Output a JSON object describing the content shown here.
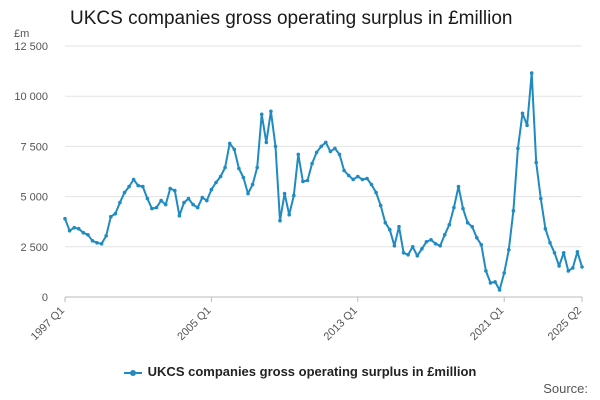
{
  "title": "UKCS companies gross operating surplus in £million",
  "chart_data": {
    "type": "line",
    "title": "UKCS companies gross operating surplus in £million",
    "ylabel": "£m",
    "xlabel": "",
    "ylim": [
      0,
      12500
    ],
    "yticks": [
      0,
      2500,
      5000,
      7500,
      10000,
      12500
    ],
    "ytick_labels": [
      "0",
      "2 500",
      "5 000",
      "7 500",
      "10 000",
      "12 500"
    ],
    "xtick_labels": [
      "1997 Q1",
      "2005 Q1",
      "2013 Q1",
      "2021 Q1",
      "2025 Q2"
    ],
    "grid": true,
    "legend_position": "bottom",
    "series": [
      {
        "name": "UKCS companies gross operating surplus in £million",
        "color": "#1f8bc2",
        "start": "1997 Q1",
        "frequency": "quarterly",
        "values": [
          3900,
          3300,
          3450,
          3400,
          3200,
          3100,
          2800,
          2700,
          2650,
          3050,
          4000,
          4150,
          4700,
          5200,
          5500,
          5850,
          5550,
          5500,
          4900,
          4400,
          4450,
          4800,
          4600,
          5400,
          5300,
          4050,
          4700,
          4900,
          4600,
          4450,
          4950,
          4800,
          5350,
          5700,
          6000,
          6450,
          7650,
          7350,
          6400,
          5950,
          5150,
          5600,
          6450,
          9100,
          7700,
          9250,
          7500,
          3800,
          5150,
          4100,
          5050,
          7100,
          5750,
          5800,
          6650,
          7200,
          7500,
          7700,
          7250,
          7400,
          7100,
          6300,
          6050,
          5850,
          6000,
          5850,
          5900,
          5600,
          5200,
          4550,
          3700,
          3350,
          2550,
          3500,
          2200,
          2100,
          2500,
          2050,
          2400,
          2750,
          2850,
          2650,
          2550,
          3100,
          3600,
          4450,
          5500,
          4400,
          3700,
          3500,
          2950,
          2600,
          1300,
          700,
          750,
          350,
          1200,
          2350,
          4300,
          7400,
          9150,
          8550,
          11150,
          6700,
          4900,
          3400,
          2700,
          2200,
          1550,
          2200,
          1300,
          1450,
          2250,
          1500
        ]
      }
    ]
  },
  "legend": {
    "label": "UKCS companies gross operating surplus in £million"
  },
  "source": {
    "label": "Source:"
  }
}
